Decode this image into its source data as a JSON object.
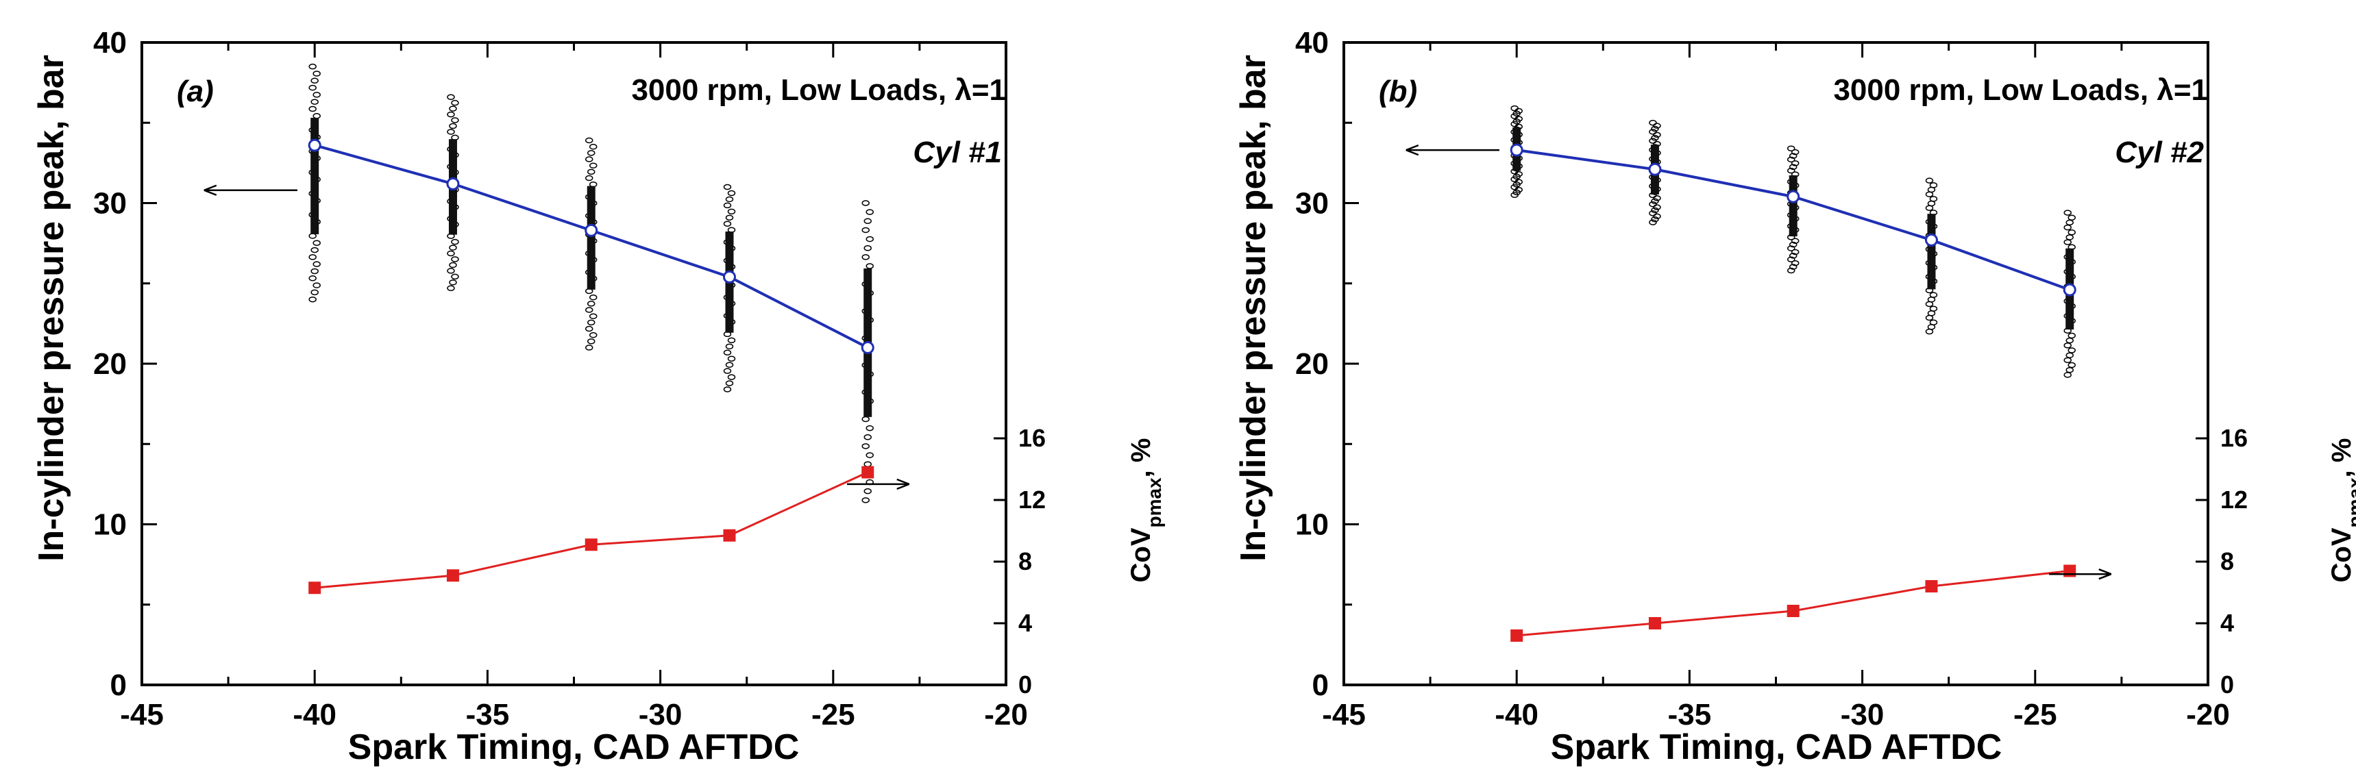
{
  "chart_data": [
    {
      "type": "line",
      "panel_label": "(a)",
      "condition": "3000 rpm, Low Loads, λ=1",
      "cylinder": "Cyl #1",
      "xlabel": "Spark Timing, CAD AFTDC",
      "ylabel": "In-cylinder pressure peak, bar",
      "y2label": "CoV",
      "y2label_sub": "pmax",
      "y2label_suffix": ", %",
      "xlim": [
        -45,
        -20
      ],
      "ylim": [
        0,
        40
      ],
      "y2lim": [
        0,
        16
      ],
      "xticks": [
        -45,
        -40,
        -35,
        -30,
        -25,
        -20
      ],
      "yticks": [
        0,
        10,
        20,
        30,
        40
      ],
      "y2ticks": [
        0,
        4,
        8,
        12,
        16
      ],
      "series": [
        {
          "name": "In-cylinder pressure peak",
          "axis": "left",
          "color": "#1f2fb4",
          "x": [
            -40,
            -36,
            -32,
            -28,
            -24
          ],
          "y": [
            33.6,
            31.2,
            28.3,
            25.4,
            21.0
          ]
        },
        {
          "name": "CoV pmax",
          "axis": "right",
          "color": "#e02020",
          "x": [
            -40,
            -36,
            -32,
            -28,
            -24
          ],
          "y": [
            6.3,
            7.1,
            9.1,
            9.7,
            13.8
          ]
        }
      ],
      "scatter_ranges": [
        {
          "x": -40,
          "min": 24.0,
          "max": 38.5
        },
        {
          "x": -36,
          "min": 24.7,
          "max": 36.6
        },
        {
          "x": -32,
          "min": 21.0,
          "max": 33.9
        },
        {
          "x": -28,
          "min": 18.4,
          "max": 31.0
        },
        {
          "x": -24,
          "min": 11.5,
          "max": 30.0
        }
      ],
      "arrows": {
        "left_arrow_y": 30.8,
        "right_arrow_y": 12.5
      }
    },
    {
      "type": "line",
      "panel_label": "(b)",
      "condition": "3000 rpm, Low Loads, λ=1",
      "cylinder": "Cyl #2",
      "xlabel": "Spark Timing, CAD AFTDC",
      "ylabel": "In-cylinder pressure peak, bar",
      "y2label": "CoV",
      "y2label_sub": "pmax",
      "y2label_suffix": ", %",
      "xlim": [
        -45,
        -20
      ],
      "ylim": [
        0,
        40
      ],
      "y2lim": [
        0,
        16
      ],
      "xticks": [
        -45,
        -40,
        -35,
        -30,
        -25,
        -20
      ],
      "yticks": [
        0,
        10,
        20,
        30,
        40
      ],
      "y2ticks": [
        0,
        4,
        8,
        12,
        16
      ],
      "series": [
        {
          "name": "In-cylinder pressure peak",
          "axis": "left",
          "color": "#1f2fb4",
          "x": [
            -40,
            -36,
            -32,
            -28,
            -24
          ],
          "y": [
            33.3,
            32.1,
            30.4,
            27.7,
            24.6
          ]
        },
        {
          "name": "CoV pmax",
          "axis": "right",
          "color": "#e02020",
          "x": [
            -40,
            -36,
            -32,
            -28,
            -24
          ],
          "y": [
            3.2,
            4.0,
            4.8,
            6.4,
            7.4
          ]
        }
      ],
      "scatter_ranges": [
        {
          "x": -40,
          "min": 30.5,
          "max": 35.9
        },
        {
          "x": -36,
          "min": 28.8,
          "max": 35.0
        },
        {
          "x": -32,
          "min": 25.8,
          "max": 33.4
        },
        {
          "x": -28,
          "min": 22.0,
          "max": 31.4
        },
        {
          "x": -24,
          "min": 19.3,
          "max": 29.4
        }
      ],
      "arrows": {
        "left_arrow_y": 33.3,
        "right_arrow_y": 6.9
      }
    }
  ]
}
